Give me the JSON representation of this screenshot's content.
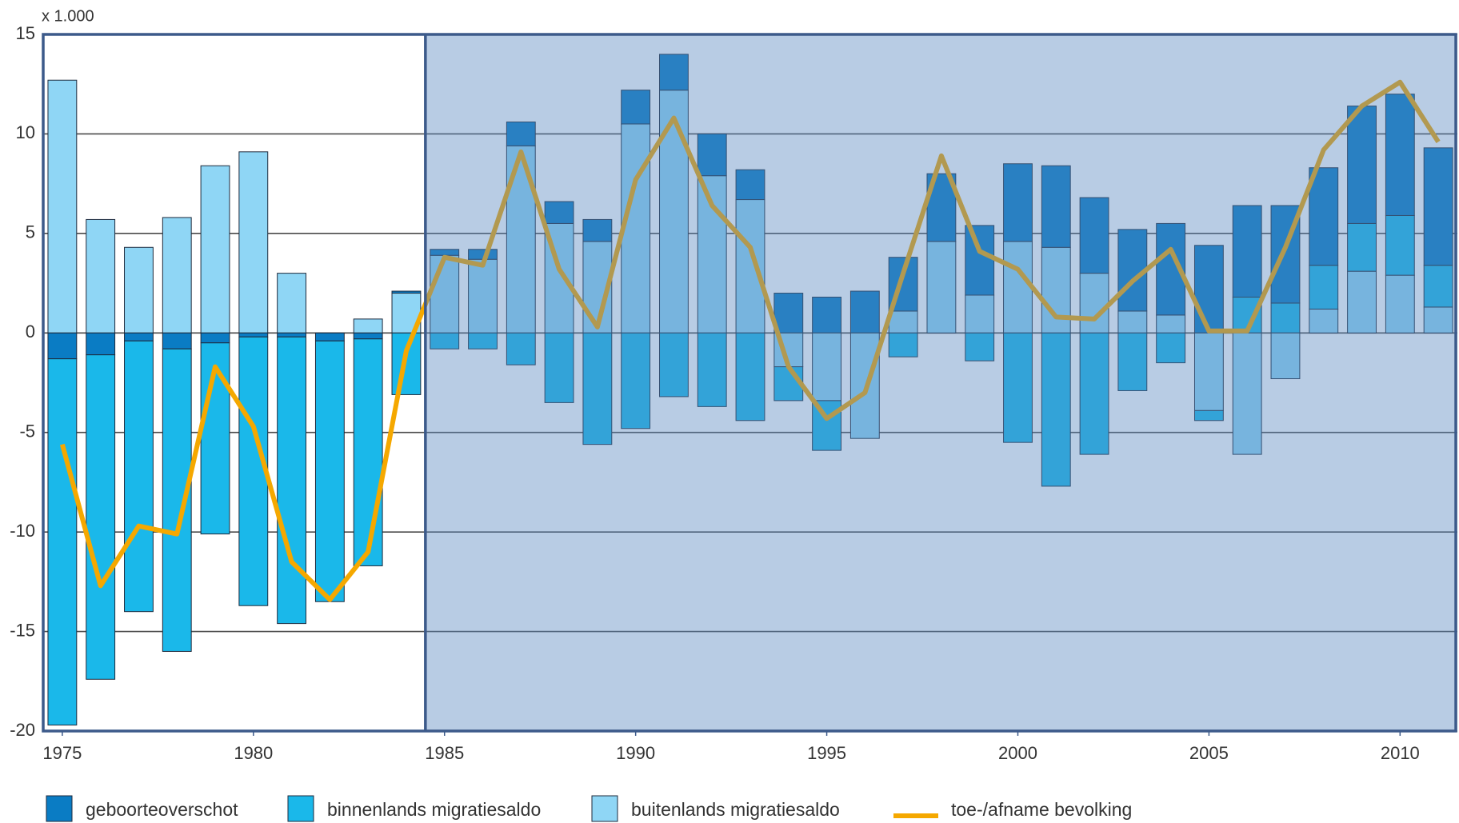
{
  "chart_data": {
    "type": "bar",
    "stacked": true,
    "y_unit_label": "x 1.000",
    "x": [
      1975,
      1976,
      1977,
      1978,
      1979,
      1980,
      1981,
      1982,
      1983,
      1984,
      1985,
      1986,
      1987,
      1988,
      1989,
      1990,
      1991,
      1992,
      1993,
      1994,
      1995,
      1996,
      1997,
      1998,
      1999,
      2000,
      2001,
      2002,
      2003,
      2004,
      2005,
      2006,
      2007,
      2008,
      2009,
      2010,
      2011
    ],
    "xlim": [
      1974.5,
      2011.5
    ],
    "xticks": [
      1975,
      1980,
      1985,
      1990,
      1995,
      2000,
      2005,
      2010
    ],
    "ylim": [
      -20,
      15
    ],
    "yticks": [
      -20,
      -15,
      -10,
      -5,
      0,
      5,
      10,
      15
    ],
    "grid": true,
    "legend": "bottom",
    "series": [
      {
        "name": "geboorteoverschot",
        "color": "#0a7cc4",
        "values": [
          -1.3,
          -1.1,
          -0.4,
          -0.8,
          -0.5,
          -0.2,
          -0.2,
          -0.4,
          -0.3,
          0.1,
          0.3,
          0.5,
          1.2,
          1.1,
          1.1,
          1.7,
          1.8,
          2.1,
          1.5,
          2.0,
          1.8,
          2.1,
          2.7,
          3.4,
          3.5,
          3.9,
          4.1,
          3.8,
          4.1,
          4.6,
          4.4,
          4.6,
          4.9,
          4.9,
          5.9,
          6.1,
          5.9
        ]
      },
      {
        "name": "binnenlands migratiesaldo",
        "color": "#1ab8ea",
        "values": [
          -18.4,
          -16.3,
          -13.6,
          -15.2,
          -9.6,
          -13.5,
          -14.4,
          -13.1,
          -11.4,
          -3.1,
          -0.8,
          -0.8,
          -1.6,
          -3.5,
          -5.6,
          -4.8,
          -3.2,
          -3.7,
          -4.4,
          -1.7,
          -2.5,
          0,
          -1.2,
          0,
          -1.4,
          -5.5,
          -7.7,
          -6.1,
          -2.9,
          -1.5,
          -0.5,
          1.8,
          1.5,
          2.2,
          2.4,
          3.0,
          2.1
        ]
      },
      {
        "name": "buitenlands migratiesaldo",
        "color": "#8fd6f5",
        "values": [
          12.7,
          5.7,
          4.3,
          5.8,
          8.4,
          9.1,
          3.0,
          0,
          0.7,
          2.0,
          3.9,
          3.7,
          9.4,
          5.5,
          4.6,
          10.5,
          12.2,
          7.9,
          6.7,
          -1.7,
          -3.4,
          -5.3,
          1.1,
          4.6,
          1.9,
          4.6,
          4.3,
          3.0,
          1.1,
          0.9,
          -3.9,
          -6.1,
          -2.3,
          1.2,
          3.1,
          2.9,
          1.3
        ]
      },
      {
        "name": "toe-/afname bevolking",
        "type": "line",
        "color": "#f5a800",
        "values": [
          -5.6,
          -12.7,
          -9.7,
          -10.1,
          -1.7,
          -4.7,
          -11.5,
          -13.4,
          -11.0,
          -0.9,
          3.8,
          3.4,
          9.1,
          3.2,
          0.3,
          7.7,
          10.8,
          6.4,
          4.3,
          -1.7,
          -4.3,
          -3.0,
          3.0,
          8.9,
          4.1,
          3.2,
          0.8,
          0.7,
          2.6,
          4.2,
          0.1,
          0.1,
          4.3,
          9.2,
          11.4,
          12.6,
          9.6
        ]
      }
    ]
  }
}
